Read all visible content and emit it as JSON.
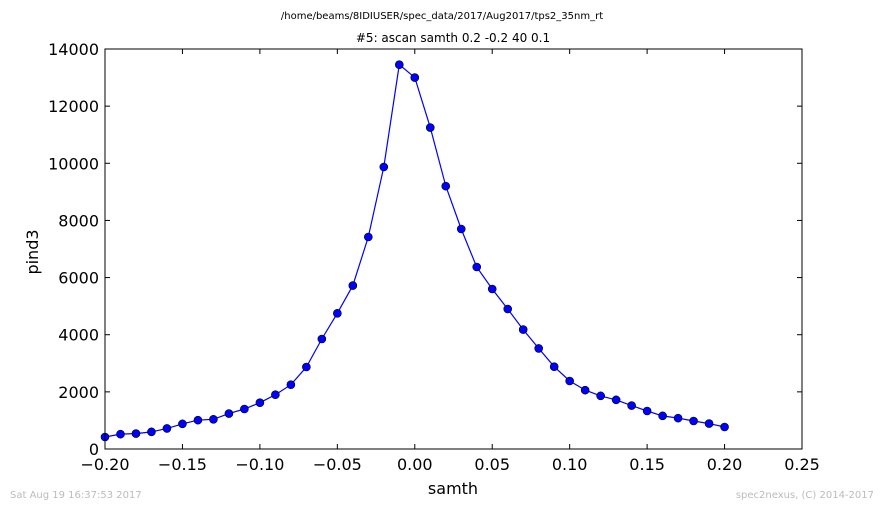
{
  "header": {
    "path": "/home/beams/8IDIUSER/spec_data/2017/Aug2017/tps2_35nm_rt"
  },
  "footer": {
    "timestamp": "Sat Aug 19 16:37:53 2017",
    "credit": "spec2nexus, (C) 2014-2017"
  },
  "colors": {
    "series": "#0000ff",
    "axes": "#000000",
    "footer_text": "#bbbbbb"
  },
  "chart_data": {
    "type": "line",
    "title": "#5: ascan  samth 0.2 -0.2  40 0.1",
    "xlabel": "samth",
    "ylabel": "pind3",
    "xlim": [
      -0.2,
      0.25
    ],
    "ylim": [
      0,
      14000
    ],
    "xticks": [
      -0.2,
      -0.15,
      -0.1,
      -0.05,
      0.0,
      0.05,
      0.1,
      0.15,
      0.2,
      0.25
    ],
    "xtick_labels": [
      "−0.20",
      "−0.15",
      "−0.10",
      "−0.05",
      "0.00",
      "0.05",
      "0.10",
      "0.15",
      "0.20",
      "0.25"
    ],
    "yticks": [
      0,
      2000,
      4000,
      6000,
      8000,
      10000,
      12000,
      14000
    ],
    "ytick_labels": [
      "0",
      "2000",
      "4000",
      "6000",
      "8000",
      "10000",
      "12000",
      "14000"
    ],
    "grid": false,
    "marker": "circle",
    "x": [
      -0.2,
      -0.19,
      -0.18,
      -0.17,
      -0.16,
      -0.15,
      -0.14,
      -0.13,
      -0.12,
      -0.11,
      -0.1,
      -0.09,
      -0.08,
      -0.07,
      -0.06,
      -0.05,
      -0.04,
      -0.03,
      -0.02,
      -0.01,
      0.0,
      0.01,
      0.02,
      0.03,
      0.04,
      0.05,
      0.06,
      0.07,
      0.08,
      0.09,
      0.1,
      0.11,
      0.12,
      0.13,
      0.14,
      0.15,
      0.16,
      0.17,
      0.18,
      0.19,
      0.2
    ],
    "y": [
      420,
      520,
      540,
      600,
      720,
      880,
      1010,
      1040,
      1240,
      1400,
      1620,
      1900,
      2250,
      2870,
      3850,
      4750,
      5720,
      7420,
      9870,
      13450,
      13000,
      11250,
      9200,
      7700,
      6370,
      5600,
      4900,
      4180,
      3520,
      2880,
      2380,
      2060,
      1860,
      1720,
      1520,
      1330,
      1160,
      1080,
      980,
      890,
      770
    ]
  }
}
